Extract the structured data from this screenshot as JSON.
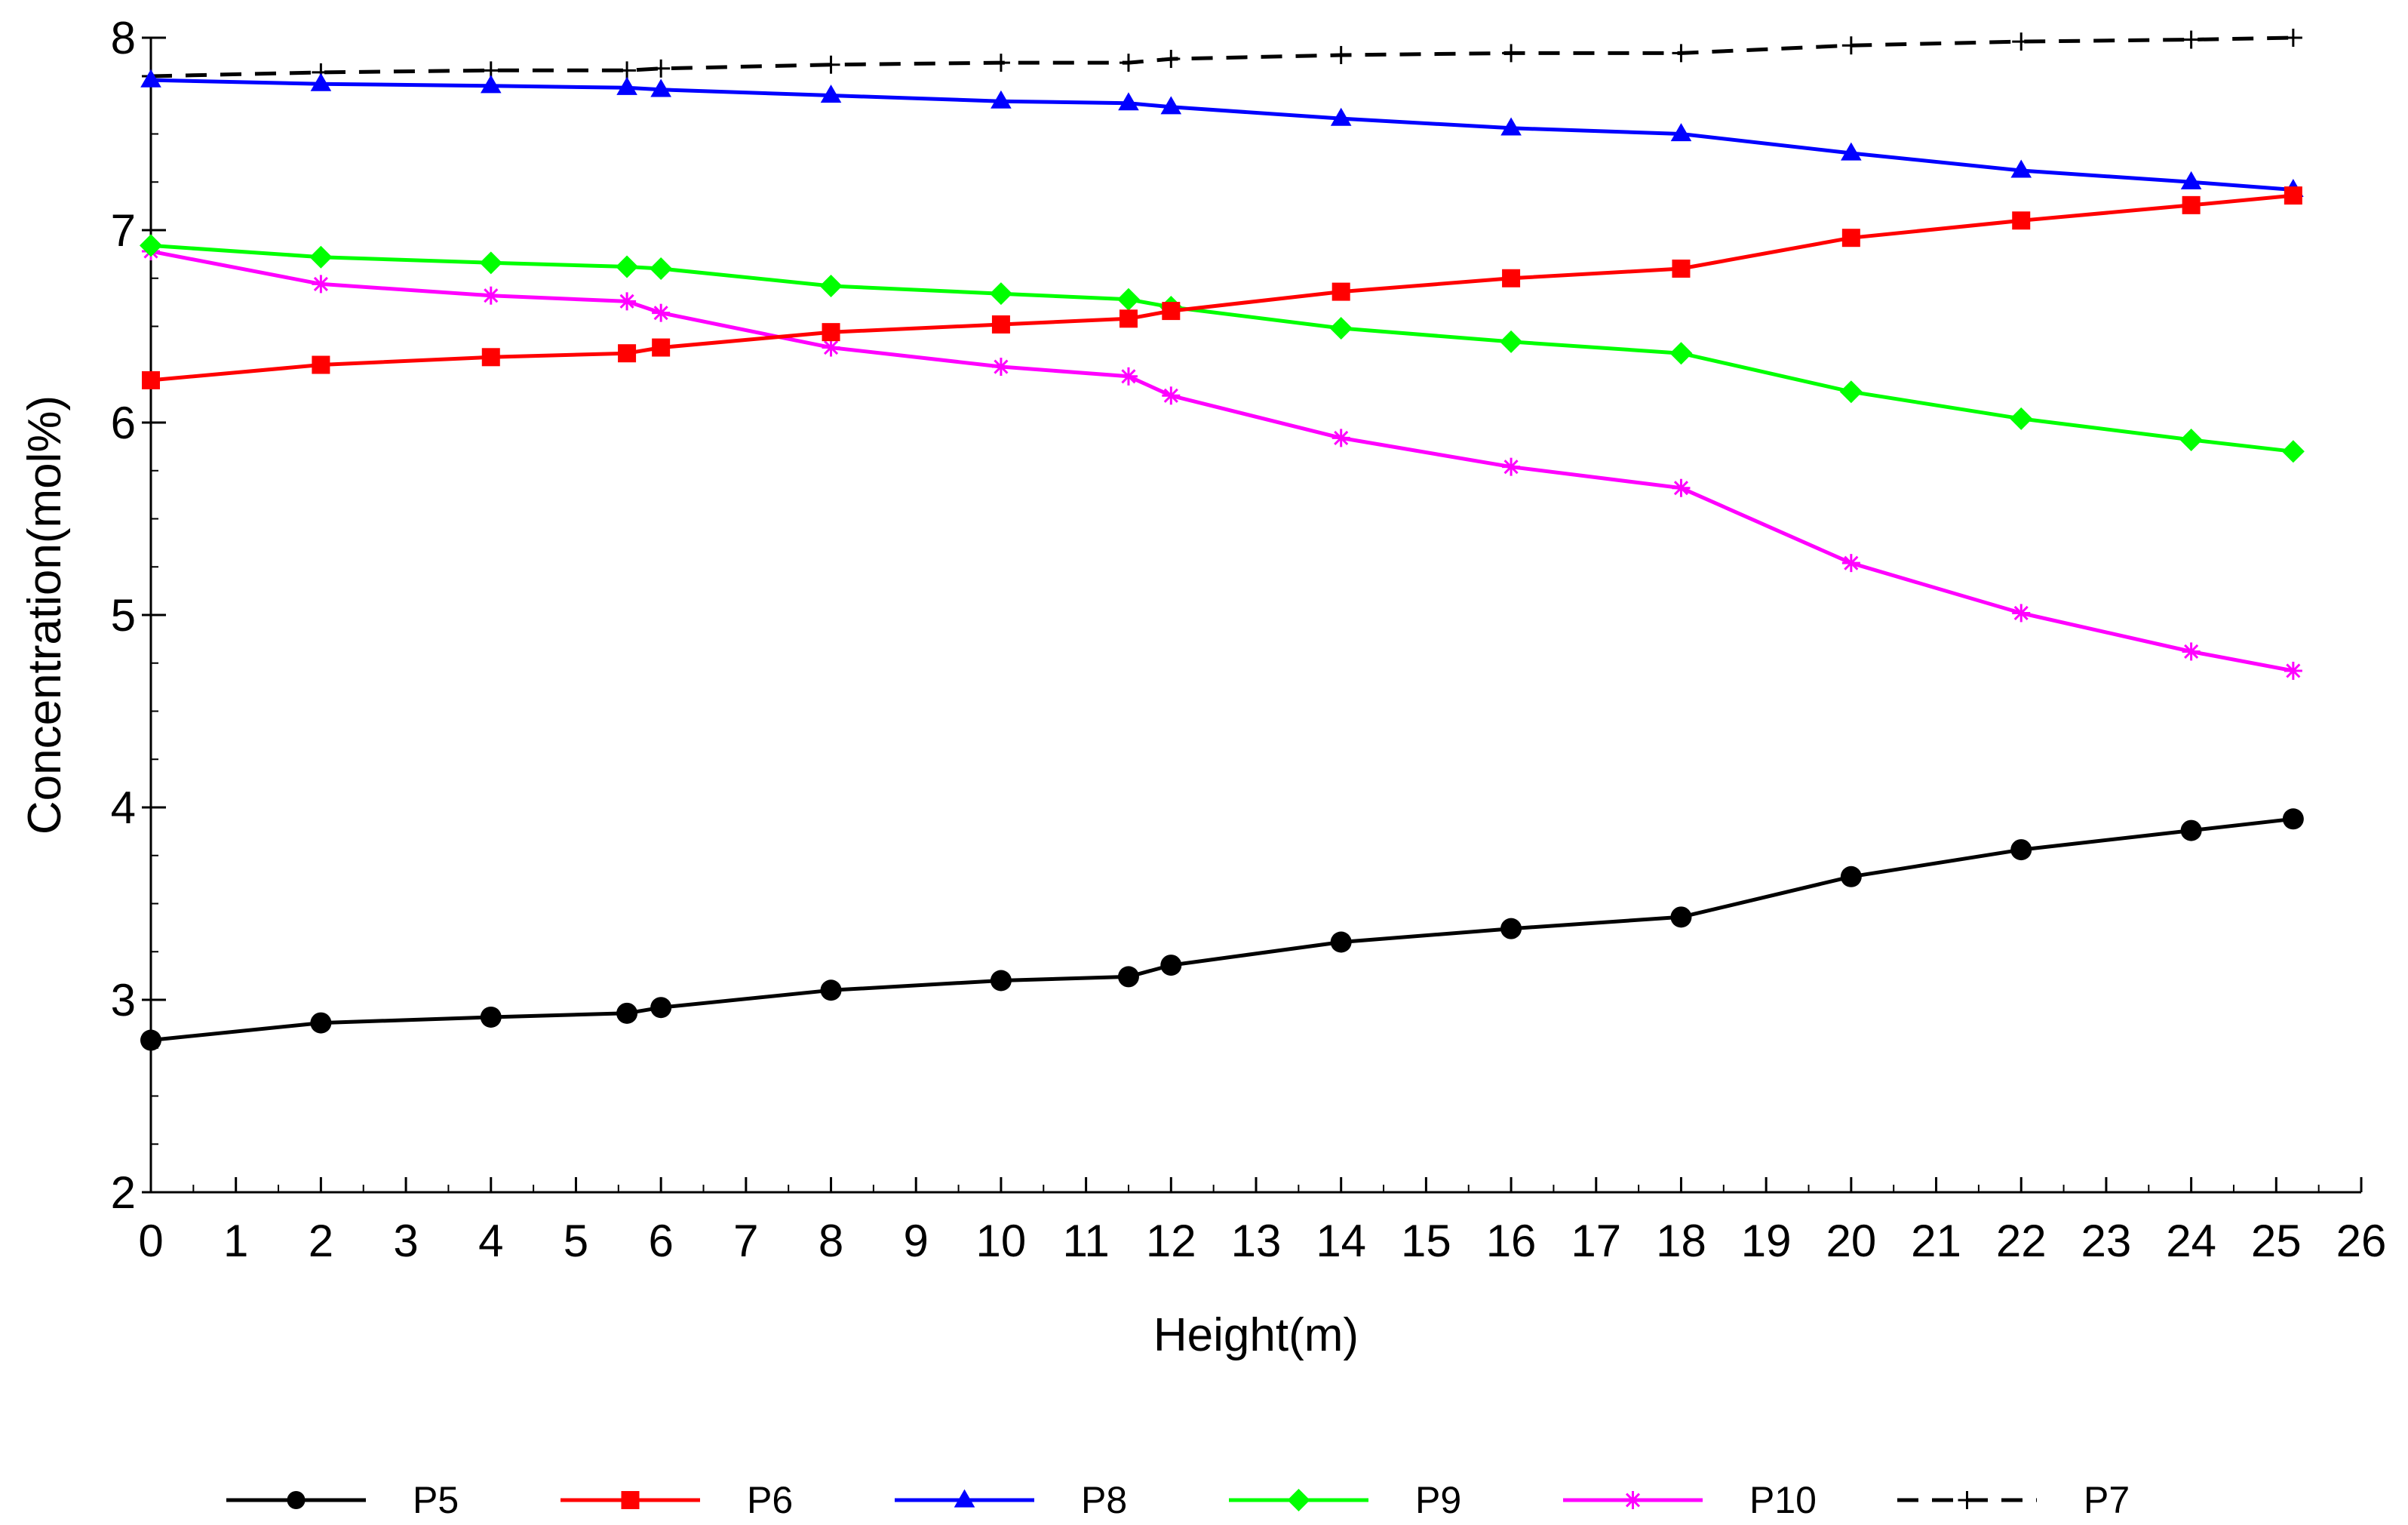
{
  "chart_data": {
    "type": "line",
    "title": "",
    "xlabel": "Height(m)",
    "ylabel": "Concentration(mol%)",
    "xlim": [
      0,
      26
    ],
    "ylim": [
      2,
      8
    ],
    "x_ticks": [
      "0",
      "1",
      "2",
      "3",
      "4",
      "5",
      "6",
      "7",
      "8",
      "9",
      "10",
      "11",
      "12",
      "13",
      "14",
      "15",
      "16",
      "17",
      "18",
      "19",
      "20",
      "21",
      "22",
      "23",
      "24",
      "25",
      "26"
    ],
    "y_ticks": [
      "2",
      "3",
      "4",
      "5",
      "6",
      "7",
      "8"
    ],
    "grid": false,
    "legend_position": "bottom",
    "series": [
      {
        "name": "P5",
        "color": "#000000",
        "marker": "circle",
        "dash": "solid",
        "x": [
          0,
          2,
          4,
          5.6,
          6,
          8,
          10,
          11.5,
          12,
          14,
          16,
          18,
          20,
          22,
          24,
          25.2
        ],
        "y": [
          2.79,
          2.88,
          2.91,
          2.93,
          2.96,
          3.05,
          3.1,
          3.12,
          3.18,
          3.3,
          3.37,
          3.43,
          3.64,
          3.78,
          3.88,
          3.94
        ]
      },
      {
        "name": "P6",
        "color": "#ff0000",
        "marker": "square",
        "dash": "solid",
        "x": [
          0,
          2,
          4,
          5.6,
          6,
          8,
          10,
          11.5,
          12,
          14,
          16,
          18,
          20,
          22,
          24,
          25.2
        ],
        "y": [
          6.22,
          6.3,
          6.34,
          6.36,
          6.39,
          6.47,
          6.51,
          6.54,
          6.58,
          6.68,
          6.75,
          6.8,
          6.96,
          7.05,
          7.13,
          7.18
        ]
      },
      {
        "name": "P8",
        "color": "#0000ff",
        "marker": "triangle",
        "dash": "solid",
        "x": [
          0,
          2,
          4,
          5.6,
          6,
          8,
          10,
          11.5,
          12,
          14,
          16,
          18,
          20,
          22,
          24,
          25.2
        ],
        "y": [
          7.78,
          7.76,
          7.75,
          7.74,
          7.73,
          7.7,
          7.67,
          7.66,
          7.64,
          7.58,
          7.53,
          7.5,
          7.4,
          7.31,
          7.25,
          7.21
        ]
      },
      {
        "name": "P9",
        "color": "#00ff00",
        "marker": "diamond",
        "dash": "solid",
        "x": [
          0,
          2,
          4,
          5.6,
          6,
          8,
          10,
          11.5,
          12,
          14,
          16,
          18,
          20,
          22,
          24,
          25.2
        ],
        "y": [
          6.92,
          6.86,
          6.83,
          6.81,
          6.8,
          6.71,
          6.67,
          6.64,
          6.6,
          6.49,
          6.42,
          6.36,
          6.16,
          6.02,
          5.91,
          5.85
        ]
      },
      {
        "name": "P10",
        "color": "#ff00ff",
        "marker": "asterisk",
        "dash": "solid",
        "x": [
          0,
          2,
          4,
          5.6,
          6,
          8,
          10,
          11.5,
          12,
          14,
          16,
          18,
          20,
          22,
          24,
          25.2
        ],
        "y": [
          6.89,
          6.72,
          6.66,
          6.63,
          6.57,
          6.39,
          6.29,
          6.24,
          6.14,
          5.92,
          5.77,
          5.66,
          5.27,
          5.01,
          4.81,
          4.71
        ]
      },
      {
        "name": "P7",
        "color": "#000000",
        "marker": "plus",
        "dash": "dashed",
        "x": [
          0,
          2,
          4,
          5.6,
          6,
          8,
          10,
          11.5,
          12,
          14,
          16,
          18,
          20,
          22,
          24,
          25.2
        ],
        "y": [
          7.8,
          7.82,
          7.83,
          7.83,
          7.84,
          7.86,
          7.87,
          7.87,
          7.89,
          7.91,
          7.92,
          7.92,
          7.96,
          7.98,
          7.99,
          8.0
        ]
      }
    ]
  }
}
